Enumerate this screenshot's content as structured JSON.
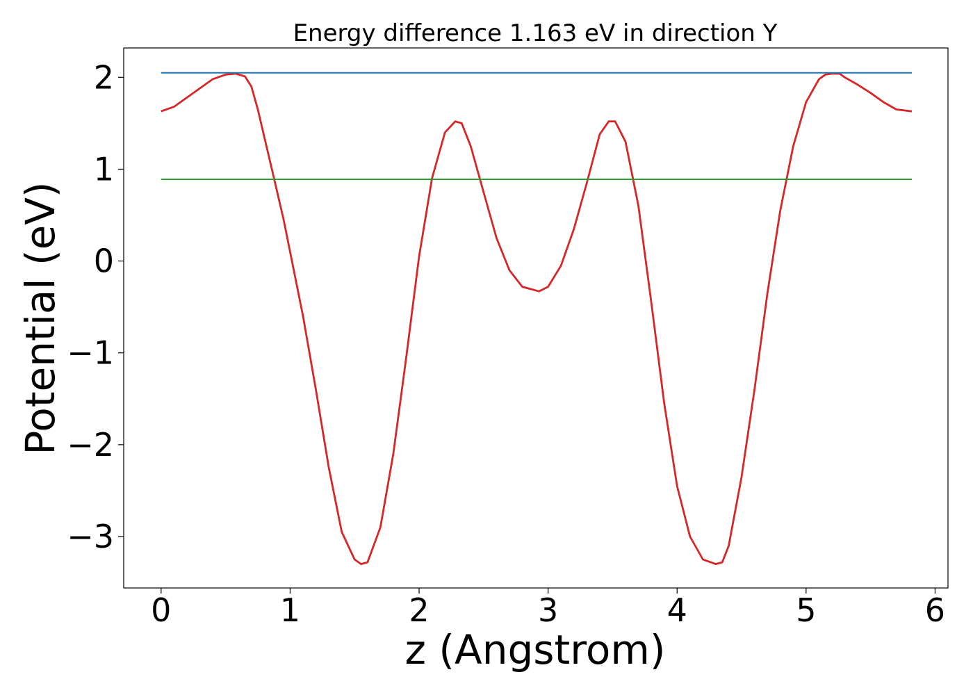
{
  "chart_data": {
    "type": "line",
    "title": "Energy difference 1.163 eV in direction Y",
    "xlabel": "z (Angstrom)",
    "ylabel": "Potential (eV)",
    "xlim": [
      -0.29,
      6.1
    ],
    "ylim": [
      -3.56,
      2.32
    ],
    "xticks": [
      0,
      1,
      2,
      3,
      4,
      5,
      6
    ],
    "xtick_labels": [
      "0",
      "1",
      "2",
      "3",
      "4",
      "5",
      "6"
    ],
    "yticks": [
      -3,
      -2,
      -1,
      0,
      1,
      2
    ],
    "ytick_labels": [
      "−3",
      "−2",
      "−1",
      "0",
      "1",
      "2"
    ],
    "grid": false,
    "series": [
      {
        "color": "#d62728",
        "x": [
          0.0,
          0.1,
          0.2,
          0.3,
          0.4,
          0.5,
          0.58,
          0.65,
          0.7,
          0.75,
          0.8,
          0.85,
          0.9,
          0.95,
          1.0,
          1.1,
          1.2,
          1.3,
          1.4,
          1.5,
          1.55,
          1.6,
          1.7,
          1.8,
          1.9,
          2.0,
          2.1,
          2.2,
          2.28,
          2.33,
          2.4,
          2.5,
          2.6,
          2.7,
          2.8,
          2.93,
          3.0,
          3.1,
          3.2,
          3.3,
          3.4,
          3.47,
          3.52,
          3.6,
          3.7,
          3.8,
          3.9,
          4.0,
          4.1,
          4.2,
          4.3,
          4.35,
          4.4,
          4.5,
          4.6,
          4.7,
          4.8,
          4.9,
          5.0,
          5.1,
          5.15,
          5.2,
          5.26,
          5.3,
          5.4,
          5.5,
          5.6,
          5.7,
          5.82
        ],
        "y": [
          1.63,
          1.68,
          1.78,
          1.88,
          1.98,
          2.03,
          2.04,
          2.01,
          1.9,
          1.65,
          1.35,
          1.05,
          0.75,
          0.45,
          0.1,
          -0.6,
          -1.4,
          -2.25,
          -2.95,
          -3.25,
          -3.3,
          -3.28,
          -2.9,
          -2.1,
          -1.05,
          0.05,
          0.9,
          1.4,
          1.52,
          1.5,
          1.25,
          0.75,
          0.25,
          -0.1,
          -0.28,
          -0.33,
          -0.28,
          -0.05,
          0.35,
          0.85,
          1.38,
          1.52,
          1.52,
          1.3,
          0.6,
          -0.45,
          -1.55,
          -2.45,
          -3.0,
          -3.25,
          -3.3,
          -3.28,
          -3.1,
          -2.35,
          -1.4,
          -0.35,
          0.55,
          1.25,
          1.73,
          1.98,
          2.03,
          2.04,
          2.04,
          2.0,
          1.92,
          1.83,
          1.73,
          1.65,
          1.63
        ]
      },
      {
        "color": "#1f77b4",
        "x": [
          0.0,
          5.82
        ],
        "y": [
          2.05,
          2.05
        ]
      },
      {
        "color": "#2ca02c",
        "x": [
          0.0,
          5.82
        ],
        "y": [
          0.89,
          0.89
        ]
      }
    ]
  }
}
